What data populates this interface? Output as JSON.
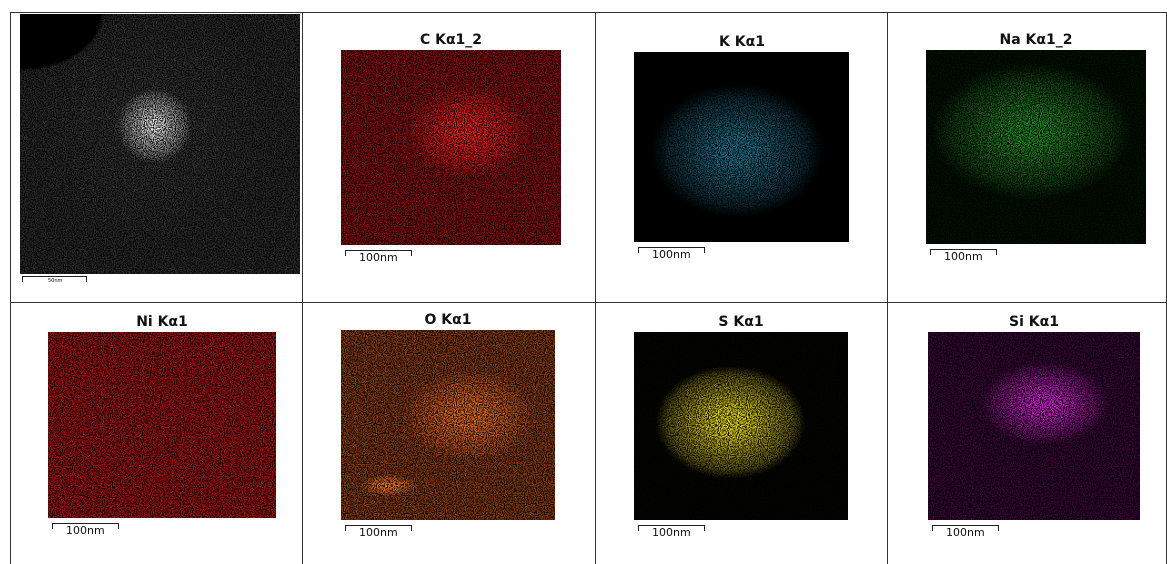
{
  "panels": [
    {
      "scale_label": "50nm"
    },
    {
      "title": "C Kα1_2",
      "scale_label": "100nm"
    },
    {
      "title": "K Kα1",
      "scale_label": "100nm"
    },
    {
      "title": "Na Kα1_2",
      "scale_label": "100nm"
    },
    {
      "title": "Ni Kα1",
      "scale_label": "100nm"
    },
    {
      "title": "O Kα1",
      "scale_label": "100nm"
    },
    {
      "title": "S Kα1",
      "scale_label": "100nm"
    },
    {
      "title": "Si Kα1",
      "scale_label": "100nm"
    }
  ]
}
